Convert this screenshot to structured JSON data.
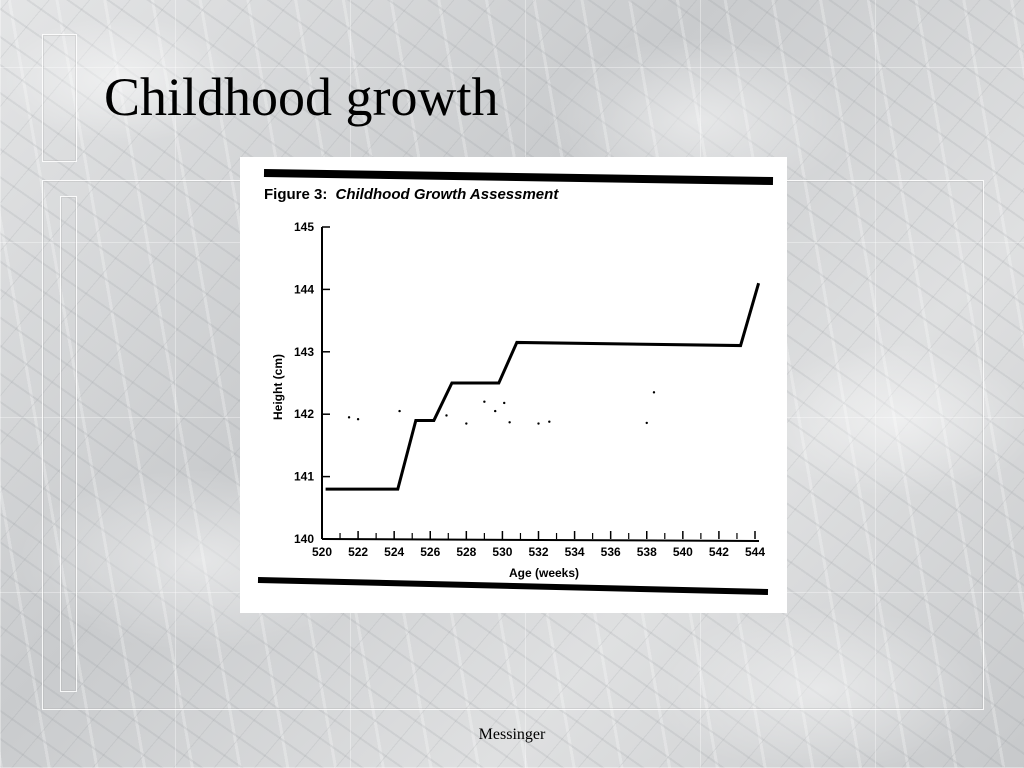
{
  "slide": {
    "title": "Childhood growth",
    "footer": "Messinger"
  },
  "chart_data": {
    "type": "line",
    "title": "Figure 3: Childhood Growth Assessment",
    "title_prefix": "Figure 3:",
    "title_italic": "Childhood Growth Assessment",
    "xlabel": "Age (weeks)",
    "ylabel": "Height (cm)",
    "xlim": [
      520,
      544
    ],
    "ylim": [
      140,
      145
    ],
    "x_ticks": [
      520,
      522,
      524,
      526,
      528,
      530,
      532,
      534,
      536,
      538,
      540,
      542,
      544
    ],
    "y_ticks": [
      140,
      141,
      142,
      143,
      144,
      145
    ],
    "grid": false,
    "series": [
      {
        "x": [
          520.2,
          524.2,
          525.2,
          526.2,
          527.2,
          529.8,
          530.8,
          543.2,
          544.2
        ],
        "y": [
          140.8,
          140.8,
          141.9,
          141.9,
          142.5,
          142.5,
          143.15,
          143.1,
          144.1
        ]
      }
    ],
    "scatter_noise": [
      {
        "x": 521.5,
        "y": 141.95
      },
      {
        "x": 522.0,
        "y": 141.92
      },
      {
        "x": 524.3,
        "y": 142.05
      },
      {
        "x": 526.9,
        "y": 141.98
      },
      {
        "x": 528.0,
        "y": 141.85
      },
      {
        "x": 529.0,
        "y": 142.2
      },
      {
        "x": 529.6,
        "y": 142.05
      },
      {
        "x": 530.1,
        "y": 142.18
      },
      {
        "x": 530.4,
        "y": 141.87
      },
      {
        "x": 532.0,
        "y": 141.85
      },
      {
        "x": 532.6,
        "y": 141.88
      },
      {
        "x": 538.0,
        "y": 141.86
      },
      {
        "x": 538.4,
        "y": 142.35
      }
    ]
  }
}
